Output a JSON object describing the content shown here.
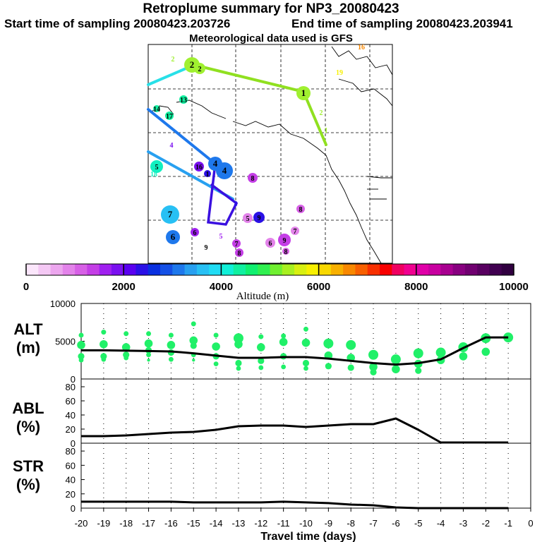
{
  "header": {
    "title": "Retroplume summary for NP3_20080423",
    "start_label": "Start time of sampling 20080423.203726",
    "end_label": "End time of sampling 20080423.203941",
    "met_label": "Meteorological data used is GFS"
  },
  "colorbar": {
    "ticks": [
      "0",
      "2000",
      "4000",
      "6000",
      "8000",
      "10000"
    ],
    "label": "Altitude (m)",
    "colors": [
      "#fbe6fb",
      "#f4c8f4",
      "#eca6ee",
      "#e383ea",
      "#d760e6",
      "#c43ee6",
      "#a020f0",
      "#7a10f0",
      "#5a00f0",
      "#2a10e6",
      "#0a30e0",
      "#1450e6",
      "#1e78ec",
      "#28a0f0",
      "#28c0f4",
      "#20dcf4",
      "#10f0d8",
      "#10f0a0",
      "#10f070",
      "#30f050",
      "#70f030",
      "#a8f020",
      "#d8f010",
      "#f8f000",
      "#f8d800",
      "#f8b000",
      "#f88800",
      "#f86000",
      "#f83000",
      "#f80000",
      "#f00060",
      "#f00090",
      "#e000a8",
      "#c800a0",
      "#a80090",
      "#880080",
      "#700070",
      "#580060",
      "#400050",
      "#300040"
    ]
  },
  "map": {
    "markers": [
      {
        "label": "2",
        "c": "#a0f030"
      },
      {
        "label": "2",
        "c": "#a0f030"
      },
      {
        "label": "2",
        "c": "#a0f030"
      },
      {
        "label": "1",
        "c": "#a0f030"
      },
      {
        "label": "1",
        "c": "#a0f030"
      },
      {
        "label": "13",
        "c": "#10f0a0"
      },
      {
        "label": "14",
        "c": "#10f0a0"
      },
      {
        "label": "17",
        "c": "#10f0a0"
      },
      {
        "label": "4",
        "c": "#7a10f0"
      },
      {
        "label": "5",
        "c": "#10f0c0"
      },
      {
        "label": "18",
        "c": "#10f0c0"
      },
      {
        "label": "4",
        "c": "#1e78ec"
      },
      {
        "label": "4",
        "c": "#1e78ec"
      },
      {
        "label": "16",
        "c": "#7a10f0"
      },
      {
        "label": "1",
        "c": "#2a10e6"
      },
      {
        "label": "8",
        "c": "#c43ee6"
      },
      {
        "label": "8",
        "c": "#2a10e6"
      },
      {
        "label": "7",
        "c": "#28c0f4"
      },
      {
        "label": "6",
        "c": "#1e78ec"
      },
      {
        "label": "5",
        "c": "#e383ea"
      },
      {
        "label": "9",
        "c": "#2a10e6"
      },
      {
        "label": "8",
        "c": "#d760e6"
      },
      {
        "label": "7",
        "c": "#e383ea"
      },
      {
        "label": "6",
        "c": "#e383ea"
      },
      {
        "label": "9",
        "c": "#c43ee6"
      },
      {
        "label": "8",
        "c": "#d760e6"
      },
      {
        "label": "7",
        "c": "#c43ee6"
      },
      {
        "label": "8",
        "c": "#c43ee6"
      },
      {
        "label": "6",
        "c": "#a020f0"
      },
      {
        "label": "5",
        "c": "#a020f0"
      },
      {
        "label": "9",
        "c": "#000000"
      },
      {
        "label": "16",
        "c": "#f88800"
      },
      {
        "label": "19",
        "c": "#f8f000"
      },
      {
        "label": "2",
        "c": "#a0f030"
      }
    ]
  },
  "chart_data": [
    {
      "type": "line",
      "panel": "ALT",
      "ylabel": "ALT\n(m)",
      "ylim": [
        0,
        10000
      ],
      "yticks": [
        0,
        5000,
        10000
      ],
      "xlim": [
        -20,
        0
      ],
      "x": [
        -20,
        -19,
        -18,
        -17,
        -16,
        -15,
        -14,
        -13,
        -12,
        -11,
        -10,
        -9,
        -8,
        -7,
        -6,
        -5,
        -4,
        -3,
        -2,
        -1
      ],
      "series": [
        {
          "name": "mean altitude",
          "values": [
            3800,
            3800,
            3750,
            3700,
            3650,
            3400,
            3100,
            2800,
            2800,
            2900,
            2900,
            2700,
            2400,
            2100,
            1900,
            2100,
            2600,
            4100,
            5500,
            5500
          ]
        }
      ],
      "scatter_y": [
        [
          5800,
          4500,
          3000,
          2500
        ],
        [
          6200,
          4600,
          3000,
          2600
        ],
        [
          6000,
          4200,
          3200,
          2800
        ],
        [
          6000,
          4700,
          3800,
          3200,
          2500
        ],
        [
          5800,
          4500,
          3500,
          2600
        ],
        [
          7300,
          5100,
          4400,
          3200,
          2500
        ],
        [
          5800,
          4300,
          3000,
          2000
        ],
        [
          5400,
          4600,
          2100,
          1400
        ],
        [
          5600,
          4200,
          2400,
          1500
        ],
        [
          5700,
          4900,
          3000,
          1600
        ],
        [
          6600,
          4800,
          2100,
          1400
        ],
        [
          4700,
          3100,
          1700
        ],
        [
          4500,
          2800,
          1500
        ],
        [
          3200,
          1600,
          900
        ],
        [
          2600,
          1300
        ],
        [
          3400,
          2000,
          1100
        ],
        [
          3500,
          2500
        ],
        [
          4200,
          3000
        ],
        [
          5400,
          3600
        ],
        [
          5500
        ]
      ]
    },
    {
      "type": "line",
      "panel": "ABL",
      "ylabel": "ABL\n(%)",
      "ylim": [
        0,
        90
      ],
      "yticks": [
        0,
        20,
        40,
        60,
        80
      ],
      "xlim": [
        -20,
        0
      ],
      "x": [
        -20,
        -19,
        -18,
        -17,
        -16,
        -15,
        -14,
        -13,
        -12,
        -11,
        -10,
        -9,
        -8,
        -7,
        -6,
        -5,
        -4,
        -3,
        -2,
        -1
      ],
      "series": [
        {
          "name": "ABL fraction",
          "values": [
            10,
            10,
            11,
            13,
            15,
            16,
            19,
            24,
            25,
            25,
            23,
            25,
            27,
            27,
            35,
            19,
            1,
            1,
            1,
            1
          ]
        }
      ]
    },
    {
      "type": "line",
      "panel": "STR",
      "ylabel": "STR\n(%)",
      "ylim": [
        0,
        90
      ],
      "yticks": [
        0,
        20,
        40,
        60,
        80
      ],
      "xlim": [
        -20,
        0
      ],
      "x": [
        -20,
        -19,
        -18,
        -17,
        -16,
        -15,
        -14,
        -13,
        -12,
        -11,
        -10,
        -9,
        -8,
        -7,
        -6,
        -5,
        -4,
        -3,
        -2,
        -1
      ],
      "xticklabels": [
        "-20",
        "-19",
        "-18",
        "-17",
        "-16",
        "-15",
        "-14",
        "-13",
        "-12",
        "-11",
        "-10",
        "-9",
        "-8",
        "-7",
        "-6",
        "-5",
        "-4",
        "-3",
        "-2",
        "-1",
        "0"
      ],
      "xlabel": "Travel time (days)",
      "series": [
        {
          "name": "stratospheric fraction",
          "values": [
            9,
            9,
            9,
            9,
            9,
            8,
            8,
            8,
            8,
            9,
            8,
            7,
            5,
            4,
            1,
            0,
            0,
            0,
            0,
            0
          ]
        }
      ]
    }
  ]
}
